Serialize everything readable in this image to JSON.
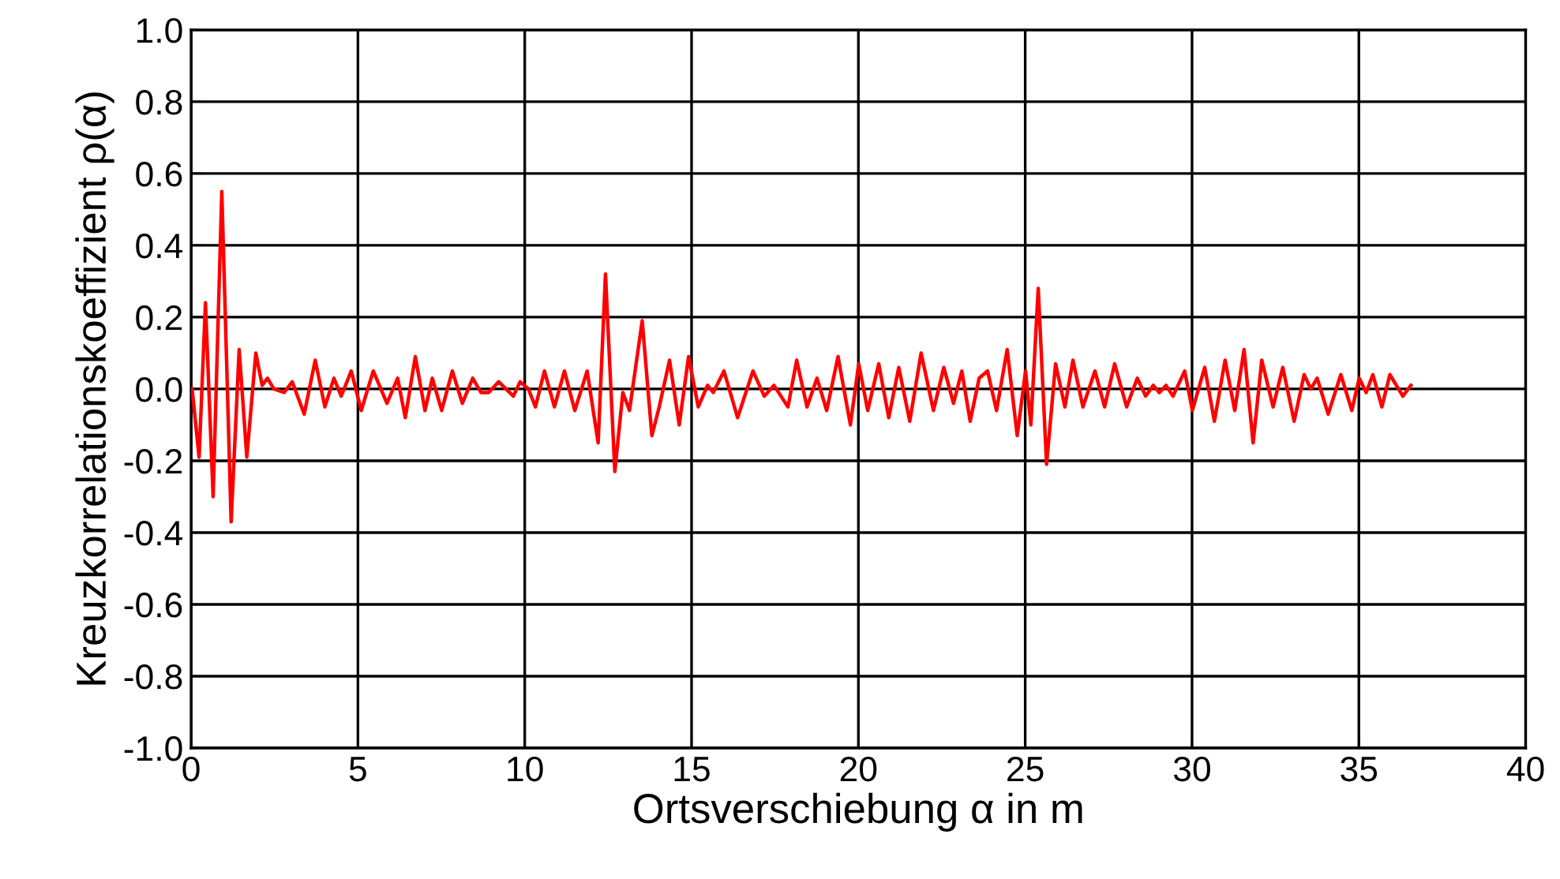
{
  "chart_data": {
    "type": "line",
    "xlabel": "Ortsverschiebung α in m",
    "ylabel": "Kreuzkorrelationskoeffizient ρ(α)",
    "xlim": [
      0,
      40
    ],
    "xticks": [
      0,
      5,
      10,
      15,
      20,
      25,
      30,
      35,
      40
    ],
    "ylim": [
      -1.0,
      1.0
    ],
    "yticks": [
      {
        "value": -1.0,
        "label": "-1.0"
      },
      {
        "value": -0.8,
        "label": "-0.8"
      },
      {
        "value": -0.6,
        "label": "-0.6"
      },
      {
        "value": -0.4,
        "label": "-0.4"
      },
      {
        "value": -0.2,
        "label": "-0.2"
      },
      {
        "value": 0.0,
        "label": "0.0"
      },
      {
        "value": 0.2,
        "label": "0.2"
      },
      {
        "value": 0.4,
        "label": "0.4"
      },
      {
        "value": 0.6,
        "label": "0.6"
      },
      {
        "value": 0.8,
        "label": "0.8"
      },
      {
        "value": 1.0,
        "label": "1.0"
      }
    ],
    "grid": true,
    "legend": false,
    "marker": "none",
    "line_style": "solid",
    "series": [
      {
        "color": "#ff0000",
        "x": [
          0.03,
          0.24,
          0.43,
          0.66,
          0.92,
          1.2,
          1.44,
          1.67,
          1.94,
          2.13,
          2.29,
          2.48,
          2.79,
          3.03,
          3.39,
          3.72,
          4.01,
          4.28,
          4.5,
          4.8,
          5.1,
          5.46,
          5.87,
          6.19,
          6.42,
          6.72,
          7.01,
          7.23,
          7.51,
          7.83,
          8.13,
          8.44,
          8.69,
          8.92,
          9.22,
          9.66,
          9.86,
          10.11,
          10.32,
          10.59,
          10.89,
          11.19,
          11.5,
          11.87,
          12.2,
          12.42,
          12.7,
          12.94,
          13.14,
          13.52,
          13.81,
          14.03,
          14.34,
          14.63,
          14.91,
          15.2,
          15.48,
          15.65,
          15.97,
          16.38,
          16.84,
          17.18,
          17.47,
          17.89,
          18.15,
          18.46,
          18.76,
          19.05,
          19.39,
          19.76,
          20.01,
          20.28,
          20.61,
          20.91,
          21.21,
          21.54,
          21.88,
          22.25,
          22.56,
          22.85,
          23.1,
          23.35,
          23.62,
          23.87,
          24.14,
          24.46,
          24.76,
          25.01,
          25.17,
          25.39,
          25.64,
          25.91,
          26.19,
          26.43,
          26.73,
          27.09,
          27.38,
          27.68,
          28.04,
          28.36,
          28.61,
          28.84,
          29.02,
          29.22,
          29.43,
          29.78,
          30.01,
          30.38,
          30.67,
          30.99,
          31.28,
          31.56,
          31.83,
          32.09,
          32.43,
          32.72,
          33.06,
          33.36,
          33.56,
          33.75,
          34.08,
          34.46,
          34.79,
          35.01,
          35.22,
          35.42,
          35.69,
          35.93,
          36.32,
          36.56
        ],
        "values": [
          0.0,
          -0.19,
          0.24,
          -0.3,
          0.55,
          -0.37,
          0.11,
          -0.19,
          0.1,
          0.01,
          0.03,
          0.0,
          -0.01,
          0.02,
          -0.07,
          0.08,
          -0.05,
          0.03,
          -0.02,
          0.05,
          -0.06,
          0.05,
          -0.04,
          0.03,
          -0.08,
          0.09,
          -0.06,
          0.03,
          -0.06,
          0.05,
          -0.04,
          0.03,
          -0.01,
          -0.01,
          0.02,
          -0.02,
          0.02,
          0.0,
          -0.05,
          0.05,
          -0.05,
          0.05,
          -0.06,
          0.05,
          -0.15,
          0.32,
          -0.23,
          -0.01,
          -0.06,
          0.19,
          -0.13,
          -0.05,
          0.08,
          -0.1,
          0.09,
          -0.05,
          0.01,
          -0.01,
          0.05,
          -0.08,
          0.05,
          -0.02,
          0.01,
          -0.05,
          0.08,
          -0.05,
          0.03,
          -0.06,
          0.09,
          -0.1,
          0.07,
          -0.06,
          0.07,
          -0.08,
          0.06,
          -0.09,
          0.1,
          -0.06,
          0.06,
          -0.04,
          0.05,
          -0.09,
          0.03,
          0.05,
          -0.06,
          0.11,
          -0.13,
          0.05,
          -0.1,
          0.28,
          -0.21,
          0.07,
          -0.05,
          0.08,
          -0.05,
          0.05,
          -0.05,
          0.07,
          -0.05,
          0.03,
          -0.02,
          0.01,
          -0.01,
          0.01,
          -0.02,
          0.05,
          -0.06,
          0.06,
          -0.09,
          0.08,
          -0.06,
          0.11,
          -0.15,
          0.08,
          -0.05,
          0.06,
          -0.09,
          0.04,
          0.0,
          0.03,
          -0.07,
          0.04,
          -0.06,
          0.03,
          -0.01,
          0.04,
          -0.05,
          0.04,
          -0.02,
          0.01
        ]
      }
    ]
  }
}
